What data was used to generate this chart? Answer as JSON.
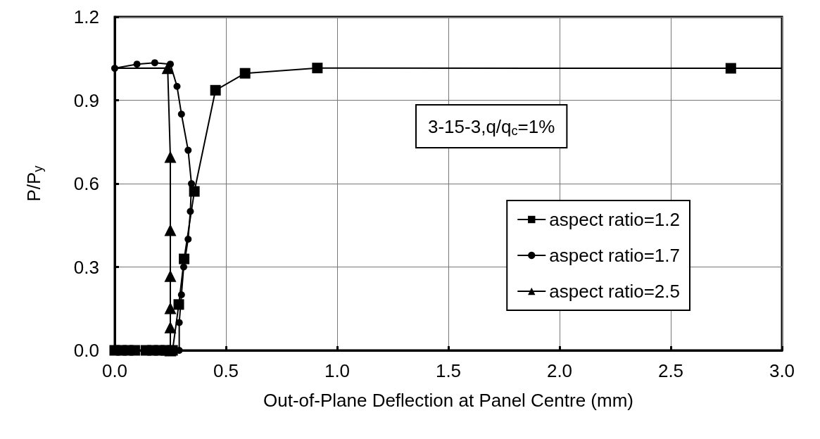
{
  "chart_data": {
    "type": "line",
    "xlabel": "Out-of-Plane Deflection at Panel Centre (mm)",
    "ylabel": "P/P$_{y}$",
    "annotations": [
      "3-15-3,q/q$_{c}$=1%"
    ],
    "xlim": [
      0,
      3
    ],
    "xticks": [
      {
        "value": 0,
        "label": "0.0"
      },
      0.5,
      {
        "value": 1,
        "label": "1.0"
      },
      1.5,
      {
        "value": 2,
        "label": "2.0"
      },
      2.5,
      {
        "value": 3,
        "label": "3.0"
      }
    ],
    "ylim": [
      0,
      1.2
    ],
    "yticks": [
      {
        "value": 0,
        "label": "0.0"
      },
      0.3,
      0.6,
      0.9,
      1.2
    ],
    "grid": true,
    "legend": "right",
    "line_style": "solid",
    "series": [
      {
        "name": "aspect ratio=1.2",
        "color": "#000000",
        "marker": "square",
        "x": [
          0,
          0.03,
          0.06,
          0.09,
          0.14,
          0.17,
          0.2,
          0.23,
          0.26,
          0.288,
          0.312,
          0.358,
          0.453,
          0.586,
          0.911,
          2.77,
          3.0
        ],
        "values": [
          0,
          0,
          0,
          0,
          0,
          0,
          0,
          0,
          0,
          0.165,
          0.329,
          0.572,
          0.936,
          0.997,
          1.016,
          1.015,
          1.015
        ]
      },
      {
        "name": "aspect ratio=1.7",
        "color": "#000000",
        "marker": "circle",
        "x": [
          0,
          0.1,
          0.18,
          0.25,
          0.28,
          0.3,
          0.33,
          0.345,
          0.34,
          0.33,
          0.31,
          0.3,
          0.29,
          0.29
        ],
        "values": [
          1.015,
          1.03,
          1.035,
          1.03,
          0.95,
          0.85,
          0.72,
          0.6,
          0.5,
          0.4,
          0.3,
          0.2,
          0.1,
          0
        ]
      },
      {
        "name": "aspect ratio=2.5",
        "color": "#000000",
        "marker": "triangle",
        "x": [
          0.25,
          0.25,
          0.25,
          0.25,
          0.25,
          0.25,
          0.238,
          0
        ],
        "values": [
          0,
          0.083,
          0.152,
          0.268,
          0.433,
          0.696,
          1.016,
          1.015
        ]
      }
    ]
  }
}
